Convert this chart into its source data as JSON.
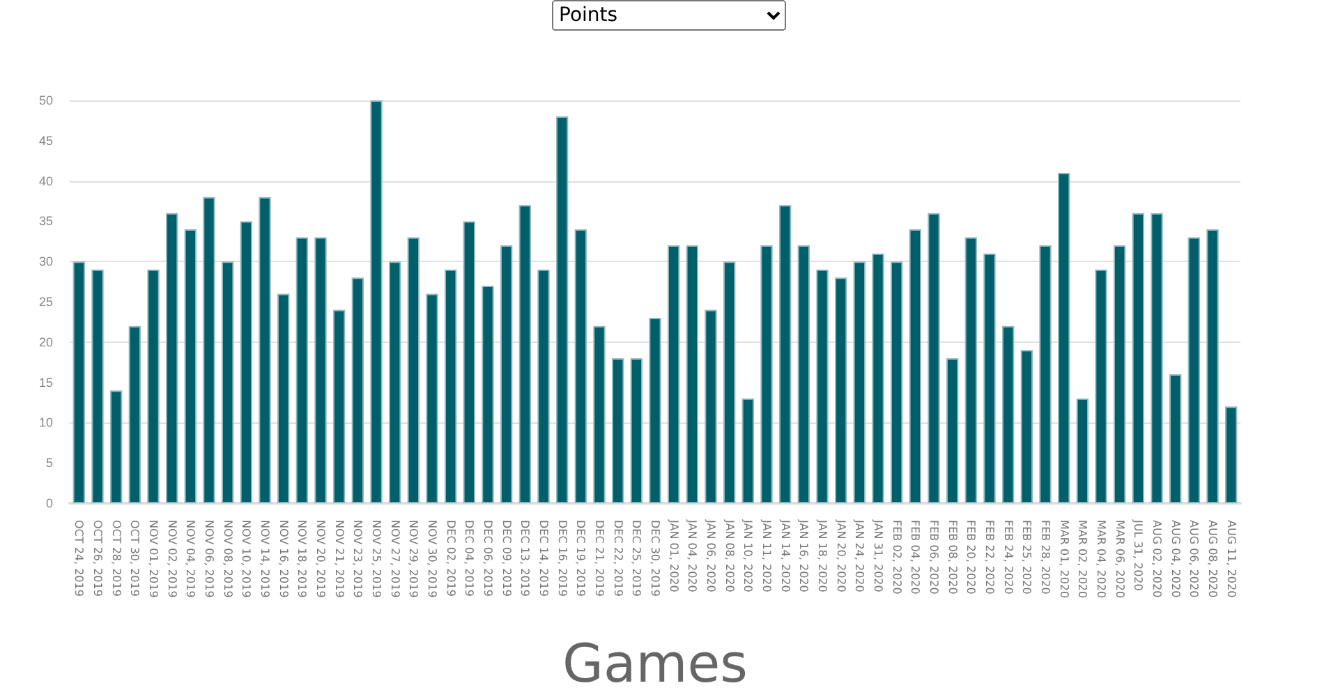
{
  "chart_data": {
    "type": "bar",
    "xlabel": "Games",
    "annotations": [
      "Points"
    ],
    "categories": [
      "OCT 24, 2019",
      "OCT 26, 2019",
      "OCT 28, 2019",
      "OCT 30, 2019",
      "NOV 01, 2019",
      "NOV 02, 2019",
      "NOV 04, 2019",
      "NOV 06, 2019",
      "NOV 08, 2019",
      "NOV 10, 2019",
      "NOV 14, 2019",
      "NOV 16, 2019",
      "NOV 18, 2019",
      "NOV 20, 2019",
      "NOV 21, 2019",
      "NOV 23, 2019",
      "NOV 25, 2019",
      "NOV 27, 2019",
      "NOV 29, 2019",
      "NOV 30, 2019",
      "DEC 02, 2019",
      "DEC 04, 2019",
      "DEC 06, 2019",
      "DEC 09, 2019",
      "DEC 13, 2019",
      "DEC 14, 2019",
      "DEC 16, 2019",
      "DEC 19, 2019",
      "DEC 21, 2019",
      "DEC 22, 2019",
      "DEC 25, 2019",
      "DEC 30, 2019",
      "JAN 01, 2020",
      "JAN 04, 2020",
      "JAN 06, 2020",
      "JAN 08, 2020",
      "JAN 10, 2020",
      "JAN 11, 2020",
      "JAN 14, 2020",
      "JAN 16, 2020",
      "JAN 18, 2020",
      "JAN 20, 2020",
      "JAN 24, 2020",
      "JAN 31, 2020",
      "FEB 02, 2020",
      "FEB 04, 2020",
      "FEB 06, 2020",
      "FEB 08, 2020",
      "FEB 20, 2020",
      "FEB 22, 2020",
      "FEB 24, 2020",
      "FEB 25, 2020",
      "FEB 28, 2020",
      "MAR 01, 2020",
      "MAR 02, 2020",
      "MAR 04, 2020",
      "MAR 06, 2020",
      "JUL 31, 2020",
      "AUG 02, 2020",
      "AUG 04, 2020",
      "AUG 06, 2020",
      "AUG 08, 2020",
      "AUG 11, 2020"
    ],
    "values": [
      30,
      29,
      14,
      22,
      29,
      36,
      34,
      38,
      30,
      35,
      38,
      26,
      33,
      33,
      24,
      28,
      50,
      30,
      33,
      26,
      29,
      35,
      27,
      32,
      37,
      29,
      48,
      34,
      22,
      18,
      18,
      23,
      32,
      32,
      24,
      30,
      13,
      32,
      37,
      32,
      29,
      28,
      30,
      31,
      30,
      34,
      36,
      18,
      33,
      31,
      22,
      19,
      32,
      41,
      13,
      29,
      32,
      36,
      36,
      16,
      33,
      34,
      12
    ],
    "color": "#005f6b",
    "ylim": [
      0,
      50
    ],
    "yticks": [
      0,
      5,
      10,
      15,
      20,
      25,
      30,
      35,
      40,
      45,
      50
    ],
    "grid": "y"
  }
}
